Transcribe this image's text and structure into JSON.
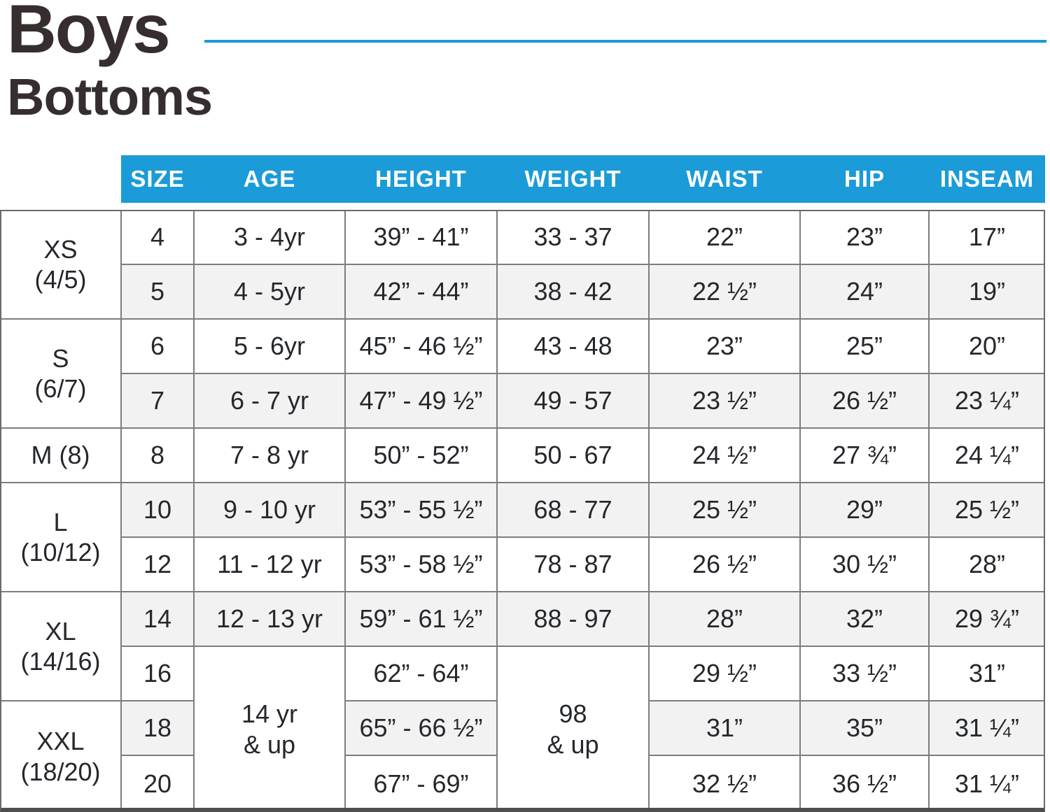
{
  "title": {
    "line1": "Boys",
    "line2": "Bottoms"
  },
  "colors": {
    "header_blue": "#1b9bd7",
    "title_text": "#362d2e",
    "cell_text": "#24272b",
    "alt_row_bg": "#f2f2f2",
    "grid_border": "#7d7d7d"
  },
  "chart_data": {
    "type": "table",
    "title": "Boys Bottoms",
    "columns": [
      "SIZE",
      "AGE",
      "HEIGHT",
      "WEIGHT",
      "WAIST",
      "HIP",
      "INSEAM"
    ],
    "groups": [
      {
        "line1": "XS",
        "line2": "(4/5)"
      },
      {
        "line1": "S",
        "line2": "(6/7)"
      },
      {
        "line1": "M (8)",
        "line2": ""
      },
      {
        "line1": "L",
        "line2": "(10/12)"
      },
      {
        "line1": "XL",
        "line2": "(14/16)"
      },
      {
        "line1": "XXL",
        "line2": "(18/20)"
      }
    ],
    "rows": [
      {
        "size": "4",
        "age": "3 - 4yr",
        "height": "39” - 41”",
        "weight": "33 - 37",
        "waist": "22”",
        "hip": "23”",
        "inseam": "17”"
      },
      {
        "size": "5",
        "age": "4 - 5yr",
        "height": "42” - 44”",
        "weight": "38 - 42",
        "waist": "22 ½”",
        "hip": "24”",
        "inseam": "19”"
      },
      {
        "size": "6",
        "age": "5 - 6yr",
        "height": "45” - 46 ½”",
        "weight": "43 - 48",
        "waist": "23”",
        "hip": "25”",
        "inseam": "20”"
      },
      {
        "size": "7",
        "age": "6 - 7 yr",
        "height": "47” - 49 ½”",
        "weight": "49 - 57",
        "waist": "23 ½”",
        "hip": "26 ½”",
        "inseam": "23 ¼”"
      },
      {
        "size": "8",
        "age": "7 - 8 yr",
        "height": "50” - 52”",
        "weight": "50 - 67",
        "waist": "24 ½”",
        "hip": "27 ¾”",
        "inseam": "24 ¼”"
      },
      {
        "size": "10",
        "age": "9 - 10 yr",
        "height": "53” - 55 ½”",
        "weight": "68 - 77",
        "waist": "25 ½”",
        "hip": "29”",
        "inseam": "25 ½”"
      },
      {
        "size": "12",
        "age": "11 - 12 yr",
        "height": "53” - 58 ½”",
        "weight": "78 - 87",
        "waist": "26 ½”",
        "hip": "30 ½”",
        "inseam": "28”"
      },
      {
        "size": "14",
        "age": "12 - 13 yr",
        "height": "59” - 61 ½”",
        "weight": "88 - 97",
        "waist": "28”",
        "hip": "32”",
        "inseam": "29 ¾”"
      },
      {
        "size": "16",
        "height": "62” - 64”",
        "waist": "29 ½”",
        "hip": "33 ½”",
        "inseam": "31”"
      },
      {
        "size": "18",
        "height": "65” - 66 ½”",
        "waist": "31”",
        "hip": "35”",
        "inseam": "31 ¼”"
      },
      {
        "size": "20",
        "height": "67” - 69”",
        "waist": "32 ½”",
        "hip": "36 ½”",
        "inseam": "31 ¼”"
      }
    ],
    "merged": {
      "age": {
        "line1": "14 yr",
        "line2": "& up"
      },
      "weight": {
        "line1": "98",
        "line2": "& up"
      }
    }
  }
}
